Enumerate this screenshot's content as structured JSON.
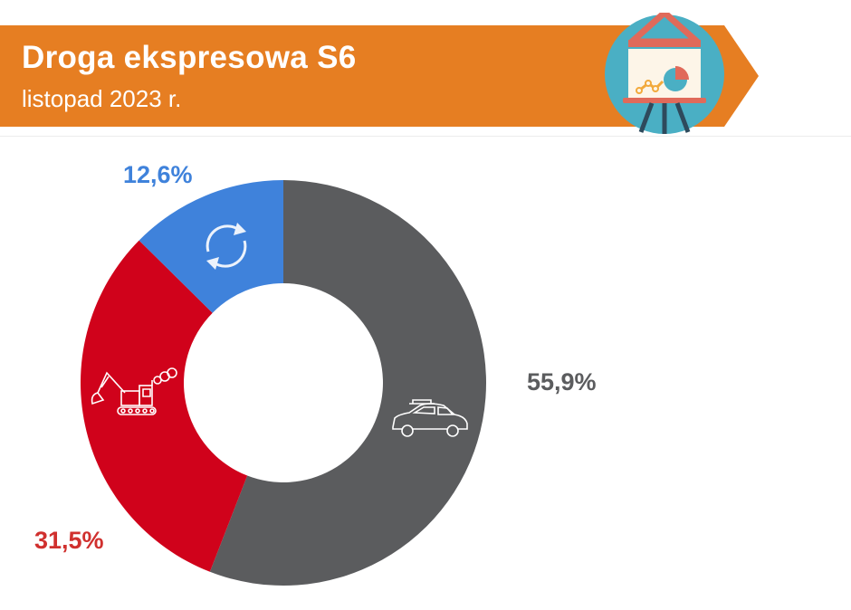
{
  "header": {
    "title": "Droga ekspresowa S6",
    "subtitle": "listopad 2023 r.",
    "banner_color": "#E67E22",
    "badge_icon": "presentation-board-icon"
  },
  "chart_data": {
    "type": "pie",
    "variant": "donut",
    "title": "Droga ekspresowa S6",
    "subtitle": "listopad 2023 r.",
    "slices": [
      {
        "label": "55,9%",
        "value": 55.9,
        "color": "#5B5C5E",
        "icon": "car-icon",
        "label_color": "#5B5C5E"
      },
      {
        "label": "31,5%",
        "value": 31.5,
        "color": "#D0021B",
        "icon": "excavator-icon",
        "label_color": "#D0302E"
      },
      {
        "label": "12,6%",
        "value": 12.6,
        "color": "#3F82DB",
        "icon": "refresh-icon",
        "label_color": "#3F82DB"
      }
    ],
    "legend": "none"
  }
}
